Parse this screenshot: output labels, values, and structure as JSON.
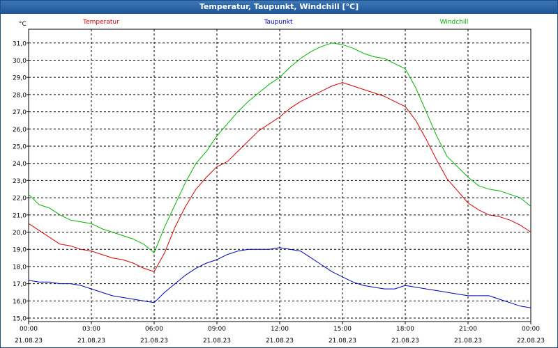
{
  "window": {
    "title": "Temperatur, Taupunkt, Windchill [°C]"
  },
  "chart_data": {
    "type": "line",
    "title": "Temperatur, Taupunkt, Windchill [°C]",
    "ylabel": "°C",
    "xlabel": "",
    "ylim": [
      14.8,
      31.8
    ],
    "xlim": [
      0,
      24
    ],
    "y_ticks": [
      "15,0",
      "16,0",
      "17,0",
      "18,0",
      "19,0",
      "20,0",
      "21,0",
      "22,0",
      "23,0",
      "24,0",
      "25,0",
      "26,0",
      "27,0",
      "28,0",
      "29,0",
      "30,0",
      "31,0"
    ],
    "x_ticks": [
      {
        "time": "00:00",
        "date": "21.08.23"
      },
      {
        "time": "03:00",
        "date": "21.08.23"
      },
      {
        "time": "06:00",
        "date": "21.08.23"
      },
      {
        "time": "09:00",
        "date": "21.08.23"
      },
      {
        "time": "12:00",
        "date": "21.08.23"
      },
      {
        "time": "15:00",
        "date": "21.08.23"
      },
      {
        "time": "18:00",
        "date": "21.08.23"
      },
      {
        "time": "21:00",
        "date": "21.08.23"
      },
      {
        "time": "00:00",
        "date": "22.08.23"
      }
    ],
    "grid": true,
    "legend_position": "top",
    "series": [
      {
        "name": "Temperatur",
        "color": "#d40000",
        "x": [
          0,
          0.5,
          1,
          1.5,
          2,
          2.5,
          3,
          3.5,
          4,
          4.5,
          5,
          5.5,
          6,
          6.5,
          7,
          7.5,
          8,
          8.5,
          9,
          9.5,
          10,
          10.5,
          11,
          11.5,
          12,
          12.5,
          13,
          13.5,
          14,
          14.5,
          15,
          15.5,
          16,
          16.5,
          17,
          17.5,
          18,
          18.5,
          19,
          19.5,
          20,
          20.5,
          21,
          21.5,
          22,
          22.5,
          23,
          23.5,
          24
        ],
        "values": [
          20.5,
          20.1,
          19.7,
          19.3,
          19.2,
          19.0,
          18.9,
          18.7,
          18.5,
          18.4,
          18.2,
          17.9,
          17.7,
          18.8,
          20.3,
          21.5,
          22.5,
          23.2,
          23.8,
          24.1,
          24.7,
          25.3,
          25.9,
          26.3,
          26.7,
          27.2,
          27.6,
          27.9,
          28.2,
          28.5,
          28.7,
          28.5,
          28.3,
          28.1,
          27.9,
          27.6,
          27.3,
          26.5,
          25.4,
          24.2,
          23.1,
          22.4,
          21.7,
          21.3,
          21.0,
          20.9,
          20.7,
          20.4,
          20.0
        ]
      },
      {
        "name": "Taupunkt",
        "color": "#0000b4",
        "x": [
          0,
          0.5,
          1,
          1.5,
          2,
          2.5,
          3,
          3.5,
          4,
          4.5,
          5,
          5.5,
          6,
          6.5,
          7,
          7.5,
          8,
          8.5,
          9,
          9.5,
          10,
          10.5,
          11,
          11.5,
          12,
          12.5,
          13,
          13.5,
          14,
          14.5,
          15,
          15.5,
          16,
          16.5,
          17,
          17.5,
          18,
          18.5,
          19,
          19.5,
          20,
          20.5,
          21,
          21.5,
          22,
          22.5,
          23,
          23.5,
          24
        ],
        "values": [
          17.2,
          17.1,
          17.1,
          17.0,
          17.0,
          16.9,
          16.7,
          16.5,
          16.3,
          16.2,
          16.1,
          16.0,
          15.9,
          16.5,
          17.0,
          17.5,
          17.9,
          18.2,
          18.4,
          18.7,
          18.9,
          19.0,
          19.0,
          19.0,
          19.1,
          19.0,
          18.9,
          18.5,
          18.1,
          17.7,
          17.4,
          17.1,
          16.9,
          16.8,
          16.7,
          16.7,
          16.9,
          16.8,
          16.7,
          16.6,
          16.5,
          16.4,
          16.3,
          16.3,
          16.3,
          16.1,
          15.9,
          15.7,
          15.6
        ]
      },
      {
        "name": "Windchill",
        "color": "#00b400",
        "x": [
          0,
          0.5,
          1,
          1.5,
          2,
          2.5,
          3,
          3.5,
          4,
          4.5,
          5,
          5.5,
          6,
          6.5,
          7,
          7.5,
          8,
          8.5,
          9,
          9.5,
          10,
          10.5,
          11,
          11.5,
          12,
          12.5,
          13,
          13.5,
          14,
          14.5,
          15,
          15.5,
          16,
          16.5,
          17,
          17.5,
          18,
          18.5,
          19,
          19.5,
          20,
          20.5,
          21,
          21.5,
          22,
          22.5,
          23,
          23.5,
          24
        ],
        "values": [
          22.2,
          21.6,
          21.4,
          21.0,
          20.7,
          20.6,
          20.5,
          20.2,
          20.0,
          19.8,
          19.6,
          19.3,
          18.8,
          20.3,
          21.6,
          22.9,
          24.0,
          24.7,
          25.6,
          26.3,
          27.0,
          27.6,
          28.1,
          28.6,
          29.0,
          29.6,
          30.1,
          30.5,
          30.8,
          31.0,
          30.9,
          30.7,
          30.4,
          30.2,
          30.1,
          29.8,
          29.5,
          28.4,
          27.0,
          25.6,
          24.4,
          23.8,
          23.2,
          22.7,
          22.5,
          22.4,
          22.2,
          22.0,
          21.5
        ]
      }
    ]
  }
}
